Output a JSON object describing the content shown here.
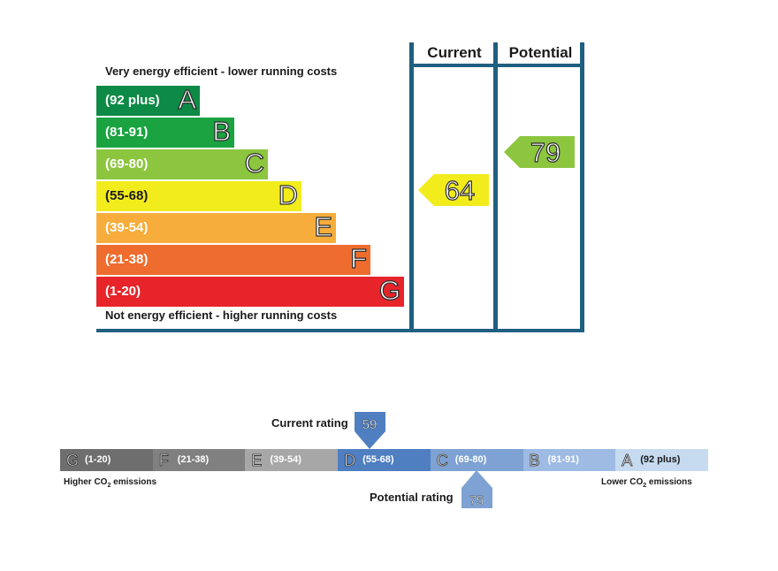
{
  "chart_data": [
    {
      "type": "bar",
      "top_caption": "Very energy efficient - lower running costs",
      "bottom_caption": "Not energy efficient - higher running costs",
      "columns": [
        "Current",
        "Potential"
      ],
      "bands": [
        {
          "letter": "A",
          "range": "(92 plus)",
          "min": 92,
          "max": 100,
          "color": "#0d8a45"
        },
        {
          "letter": "B",
          "range": "(81-91)",
          "min": 81,
          "max": 91,
          "color": "#1aa340"
        },
        {
          "letter": "C",
          "range": "(69-80)",
          "min": 69,
          "max": 80,
          "color": "#8cc63f"
        },
        {
          "letter": "D",
          "range": "(55-68)",
          "min": 55,
          "max": 68,
          "color": "#f2ec1c"
        },
        {
          "letter": "E",
          "range": "(39-54)",
          "min": 39,
          "max": 54,
          "color": "#f7ad3b"
        },
        {
          "letter": "F",
          "range": "(21-38)",
          "min": 21,
          "max": 38,
          "color": "#ef6c2f"
        },
        {
          "letter": "G",
          "range": "(1-20)",
          "min": 1,
          "max": 20,
          "color": "#e8242b"
        }
      ],
      "current": {
        "value": "64",
        "band": "D",
        "color": "#f2ec1c"
      },
      "potential": {
        "value": "79",
        "band": "C",
        "color": "#8cc63f"
      }
    },
    {
      "type": "bar",
      "left_caption": {
        "pre": "Higher CO",
        "sub": "2",
        "post": " emissions"
      },
      "right_caption": {
        "pre": "Lower CO",
        "sub": "2",
        "post": " emissions"
      },
      "segments": [
        {
          "letter": "G",
          "range": "(1-20)",
          "color": "#6e6e6e"
        },
        {
          "letter": "F",
          "range": "(21-38)",
          "color": "#808080"
        },
        {
          "letter": "E",
          "range": "(39-54)",
          "color": "#a7a7a7"
        },
        {
          "letter": "D",
          "range": "(55-68)",
          "color": "#4f7fc1"
        },
        {
          "letter": "C",
          "range": "(69-80)",
          "color": "#7ea2d3"
        },
        {
          "letter": "B",
          "range": "(81-91)",
          "color": "#9dbbe3"
        },
        {
          "letter": "A",
          "range": "(92 plus)",
          "color": "#c6daf0"
        }
      ],
      "current": {
        "label": "Current rating",
        "value": "59",
        "band": "D",
        "color": "#4f7fc1"
      },
      "potential": {
        "label": "Potential rating",
        "value": "75",
        "band": "C",
        "color": "#7ea2d3"
      }
    }
  ]
}
